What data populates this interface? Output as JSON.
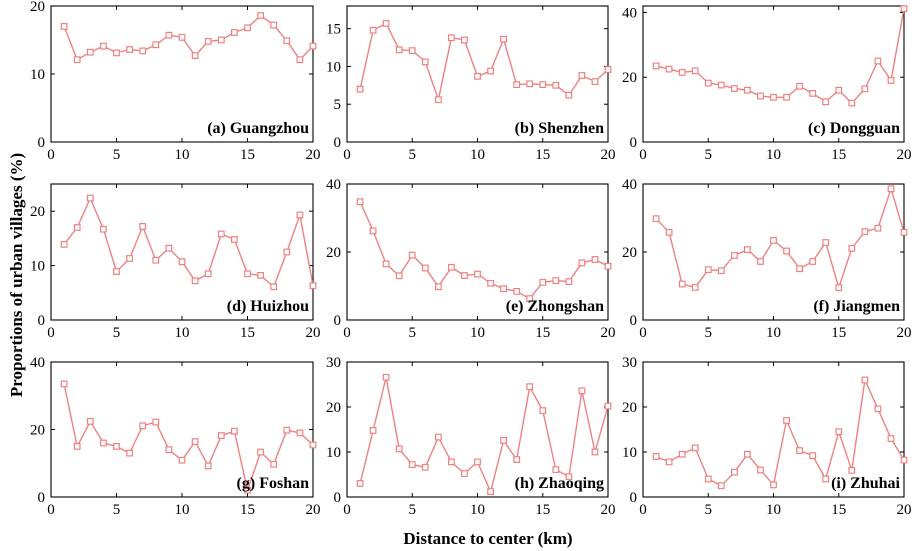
{
  "chart_data": {
    "type": "line",
    "xlabel": "Distance to center (km)",
    "ylabel": "Proportions of urban villages (%)",
    "x": [
      1,
      2,
      3,
      4,
      5,
      6,
      7,
      8,
      9,
      10,
      11,
      12,
      13,
      14,
      15,
      16,
      17,
      18,
      19,
      20
    ],
    "xlim": [
      0,
      20
    ],
    "xticks": [
      0,
      5,
      10,
      15,
      20
    ],
    "color": "#f08080",
    "panels": [
      {
        "label": "(a) Guangzhou",
        "ylim": [
          0,
          20
        ],
        "yticks": [
          0,
          10,
          20
        ],
        "values": [
          17.0,
          12.1,
          13.2,
          14.1,
          13.1,
          13.6,
          13.4,
          14.3,
          15.7,
          15.4,
          12.7,
          14.8,
          15.0,
          16.1,
          16.8,
          18.6,
          17.2,
          14.9,
          12.1,
          14.1
        ]
      },
      {
        "label": "(b) Shenzhen",
        "ylim": [
          0,
          18
        ],
        "yticks": [
          0,
          5,
          10,
          15
        ],
        "values": [
          7.0,
          14.8,
          15.7,
          12.2,
          12.1,
          10.6,
          5.6,
          13.8,
          13.5,
          8.7,
          9.4,
          13.6,
          7.6,
          7.7,
          7.6,
          7.5,
          6.2,
          8.8,
          8.0,
          9.6
        ]
      },
      {
        "label": "(c) Dongguan",
        "ylim": [
          0,
          42
        ],
        "yticks": [
          0,
          20,
          40
        ],
        "values": [
          23.5,
          22.5,
          21.5,
          22.0,
          18.2,
          17.6,
          16.5,
          16.0,
          14.2,
          13.8,
          13.8,
          17.2,
          15.0,
          12.4,
          16.0,
          12.0,
          16.4,
          25.0,
          19.0,
          41.2
        ]
      },
      {
        "label": "(d) Huizhou",
        "ylim": [
          0,
          25
        ],
        "yticks": [
          0,
          10,
          20
        ],
        "values": [
          13.9,
          17.0,
          22.4,
          16.7,
          8.9,
          11.3,
          17.2,
          11.0,
          13.2,
          10.7,
          7.2,
          8.5,
          15.8,
          14.8,
          8.5,
          8.2,
          6.1,
          12.5,
          19.3,
          6.3
        ]
      },
      {
        "label": "(e) Zhongshan",
        "ylim": [
          0,
          40
        ],
        "yticks": [
          0,
          20,
          40
        ],
        "values": [
          34.8,
          26.2,
          16.5,
          13.0,
          19.1,
          15.3,
          9.8,
          15.5,
          13.1,
          13.5,
          10.8,
          9.2,
          8.4,
          6.3,
          11.1,
          11.6,
          11.3,
          16.8,
          17.8,
          15.8
        ]
      },
      {
        "label": "(f) Jiangmen",
        "ylim": [
          0,
          40
        ],
        "yticks": [
          0,
          20,
          40
        ],
        "values": [
          29.8,
          25.8,
          10.6,
          9.6,
          14.8,
          14.5,
          19.0,
          20.7,
          17.2,
          23.4,
          20.3,
          15.1,
          17.2,
          22.8,
          9.5,
          21.1,
          26.0,
          27.0,
          38.6,
          25.8
        ]
      },
      {
        "label": "(g) Foshan",
        "ylim": [
          0,
          40
        ],
        "yticks": [
          0,
          20,
          40
        ],
        "values": [
          33.5,
          15.0,
          22.4,
          16.0,
          15.0,
          13.0,
          21.1,
          22.2,
          14.0,
          10.9,
          16.4,
          9.2,
          18.2,
          19.5,
          2.0,
          13.3,
          9.7,
          19.8,
          19.0,
          15.4
        ]
      },
      {
        "label": "(h) Zhaoqing",
        "ylim": [
          0,
          30
        ],
        "yticks": [
          0,
          10,
          20,
          30
        ],
        "values": [
          3.0,
          14.8,
          26.6,
          10.7,
          7.2,
          6.6,
          13.3,
          7.8,
          5.2,
          7.8,
          1.2,
          12.6,
          8.3,
          24.5,
          19.2,
          6.1,
          4.5,
          23.6,
          10.0,
          20.2
        ]
      },
      {
        "label": "(i) Zhuhai",
        "ylim": [
          0,
          30
        ],
        "yticks": [
          0,
          10,
          20,
          30
        ],
        "values": [
          9.0,
          7.8,
          9.5,
          10.9,
          4.0,
          2.5,
          5.5,
          9.5,
          6.0,
          2.7,
          17.0,
          10.3,
          9.2,
          4.0,
          14.5,
          5.9,
          26.0,
          19.6,
          13.0,
          8.2
        ]
      }
    ]
  }
}
